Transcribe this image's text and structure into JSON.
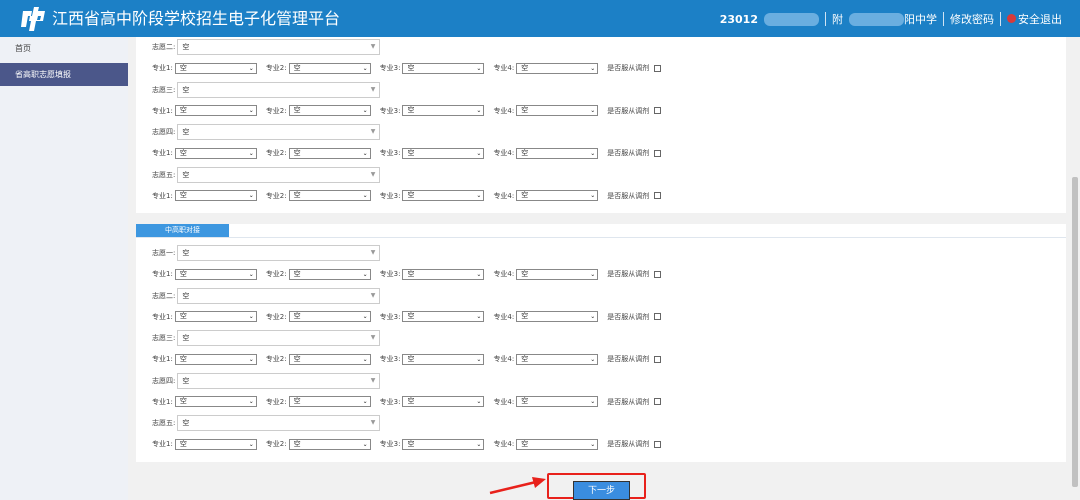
{
  "header": {
    "title": "江西省高中阶段学校招生电子化管理平台",
    "user_id": "23012",
    "school": "阳中学",
    "school_prefix": "附",
    "change_password": "修改密码",
    "logout": "安全退出",
    "color": "#1c80c6"
  },
  "sidebar": {
    "items": [
      {
        "label": "首页",
        "active": false
      },
      {
        "label": "省高职志愿填报",
        "active": true
      }
    ]
  },
  "labels": {
    "major_prefix": "专业",
    "obey": "是否服从调剂",
    "empty": "空"
  },
  "panels": [
    {
      "tab": "",
      "volunteers": [
        {
          "label": "志愿二:",
          "value": "空",
          "majors": [
            "空",
            "空",
            "空",
            "空"
          ],
          "obey": false
        },
        {
          "label": "志愿三:",
          "value": "空",
          "majors": [
            "空",
            "空",
            "空",
            "空"
          ],
          "obey": false
        },
        {
          "label": "志愿四:",
          "value": "空",
          "majors": [
            "空",
            "空",
            "空",
            "空"
          ],
          "obey": false
        },
        {
          "label": "志愿五:",
          "value": "空",
          "majors": [
            "空",
            "空",
            "空",
            "空"
          ],
          "obey": false
        }
      ]
    },
    {
      "tab": "中高职对接",
      "volunteers": [
        {
          "label": "志愿一:",
          "value": "空",
          "majors": [
            "空",
            "空",
            "空",
            "空"
          ],
          "obey": false
        },
        {
          "label": "志愿二:",
          "value": "空",
          "majors": [
            "空",
            "空",
            "空",
            "空"
          ],
          "obey": false
        },
        {
          "label": "志愿三:",
          "value": "空",
          "majors": [
            "空",
            "空",
            "空",
            "空"
          ],
          "obey": false
        },
        {
          "label": "志愿四:",
          "value": "空",
          "majors": [
            "空",
            "空",
            "空",
            "空"
          ],
          "obey": false
        },
        {
          "label": "志愿五:",
          "value": "空",
          "majors": [
            "空",
            "空",
            "空",
            "空"
          ],
          "obey": false
        }
      ]
    }
  ],
  "next_button": "下一步",
  "highlight_color": "#e8211b"
}
